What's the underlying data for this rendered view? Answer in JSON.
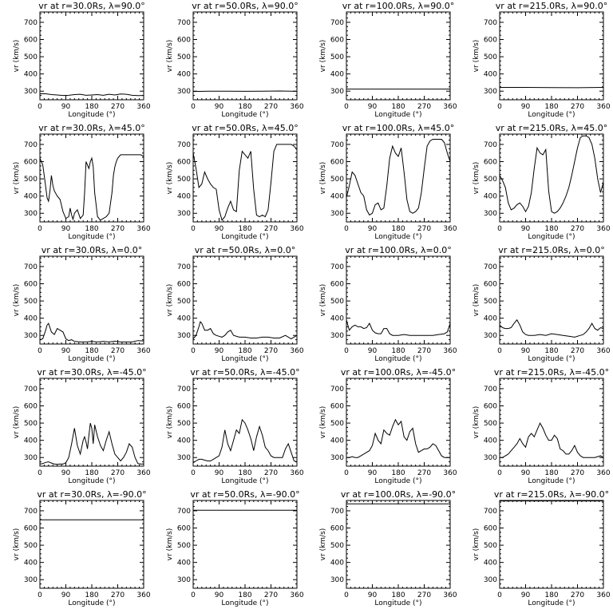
{
  "chart_data": {
    "type": "line",
    "layout": "5x4 grid of line plots",
    "xlabel": "Longitude (°)",
    "ylabel": "vr (km/s)",
    "xlim": [
      0,
      360
    ],
    "ylim": [
      250,
      760
    ],
    "xticks": [
      0,
      90,
      180,
      270,
      360
    ],
    "yticks": [
      300,
      400,
      500,
      600,
      700
    ],
    "color": "#000000",
    "panels": [
      {
        "title": "vr at r=30.0Rs, λ=90.0°",
        "x": [
          0,
          20,
          40,
          60,
          80,
          100,
          120,
          140,
          160,
          180,
          200,
          220,
          240,
          260,
          280,
          300,
          320,
          340,
          360
        ],
        "y": [
          285,
          285,
          280,
          278,
          275,
          276,
          280,
          282,
          276,
          278,
          280,
          276,
          282,
          278,
          284,
          282,
          276,
          274,
          275
        ]
      },
      {
        "title": "vr at r=50.0Rs, λ=90.0°",
        "x": [
          0,
          60,
          120,
          180,
          240,
          300,
          360
        ],
        "y": [
          298,
          300,
          300,
          299,
          300,
          301,
          299
        ]
      },
      {
        "title": "vr at r=100.0Rs, λ=90.0°",
        "x": [
          0,
          360
        ],
        "y": [
          312,
          312
        ]
      },
      {
        "title": "vr at r=215.0Rs, λ=90.0°",
        "x": [
          0,
          90,
          180,
          270,
          360
        ],
        "y": [
          322,
          322,
          321,
          320,
          322
        ]
      },
      {
        "title": "vr at r=30.0Rs, λ=45.0°",
        "x": [
          0,
          10,
          15,
          25,
          30,
          35,
          40,
          45,
          50,
          60,
          70,
          80,
          90,
          100,
          105,
          110,
          115,
          120,
          130,
          140,
          150,
          155,
          160,
          165,
          170,
          175,
          180,
          185,
          190,
          200,
          210,
          220,
          230,
          240,
          250,
          255,
          260,
          265,
          270,
          280,
          290,
          300,
          310,
          320,
          330,
          340,
          350,
          360
        ],
        "y": [
          620,
          580,
          520,
          390,
          370,
          430,
          520,
          460,
          430,
          400,
          380,
          310,
          270,
          280,
          330,
          290,
          265,
          300,
          320,
          270,
          290,
          420,
          600,
          580,
          560,
          600,
          620,
          570,
          420,
          280,
          260,
          270,
          280,
          300,
          420,
          520,
          570,
          600,
          620,
          640,
          640,
          640,
          640,
          640,
          640,
          640,
          640,
          630
        ]
      },
      {
        "title": "vr at r=50.0Rs, λ=45.0°",
        "x": [
          0,
          10,
          20,
          30,
          40,
          50,
          60,
          70,
          80,
          90,
          100,
          110,
          120,
          130,
          140,
          150,
          160,
          170,
          180,
          190,
          200,
          210,
          220,
          230,
          240,
          250,
          260,
          270,
          280,
          290,
          300,
          310,
          320,
          330,
          340,
          350,
          360
        ],
        "y": [
          650,
          560,
          450,
          470,
          540,
          500,
          470,
          450,
          440,
          320,
          260,
          280,
          330,
          370,
          320,
          310,
          550,
          660,
          640,
          620,
          660,
          440,
          290,
          280,
          290,
          280,
          320,
          480,
          660,
          700,
          700,
          700,
          700,
          700,
          700,
          690,
          670
        ]
      },
      {
        "title": "vr at r=100.0Rs, λ=45.0°",
        "x": [
          0,
          10,
          20,
          30,
          40,
          50,
          60,
          70,
          80,
          90,
          100,
          110,
          120,
          130,
          140,
          150,
          160,
          170,
          180,
          190,
          200,
          210,
          220,
          230,
          240,
          250,
          260,
          270,
          280,
          290,
          300,
          310,
          320,
          330,
          340,
          350,
          360
        ],
        "y": [
          390,
          460,
          540,
          520,
          470,
          420,
          400,
          320,
          290,
          300,
          350,
          360,
          320,
          330,
          460,
          620,
          690,
          650,
          630,
          680,
          540,
          380,
          310,
          300,
          310,
          330,
          420,
          560,
          690,
          720,
          730,
          730,
          730,
          730,
          710,
          650,
          600
        ]
      },
      {
        "title": "vr at r=215.0Rs, λ=45.0°",
        "x": [
          0,
          10,
          20,
          30,
          40,
          50,
          60,
          70,
          80,
          90,
          100,
          110,
          120,
          130,
          140,
          150,
          160,
          170,
          180,
          190,
          200,
          210,
          220,
          230,
          240,
          250,
          260,
          270,
          280,
          290,
          300,
          310,
          320,
          330,
          340,
          350,
          360
        ],
        "y": [
          520,
          490,
          450,
          360,
          320,
          330,
          350,
          360,
          340,
          310,
          340,
          420,
          560,
          680,
          650,
          640,
          670,
          430,
          310,
          300,
          310,
          330,
          360,
          400,
          450,
          520,
          600,
          680,
          740,
          750,
          750,
          740,
          700,
          620,
          500,
          420,
          480
        ]
      },
      {
        "title": "vr at r=30.0Rs, λ=0.0°",
        "x": [
          0,
          10,
          20,
          25,
          30,
          40,
          50,
          60,
          70,
          80,
          90,
          100,
          110,
          120,
          140,
          160,
          180,
          200,
          220,
          240,
          260,
          280,
          300,
          320,
          340,
          360
        ],
        "y": [
          275,
          280,
          330,
          360,
          370,
          320,
          305,
          340,
          330,
          320,
          280,
          270,
          275,
          265,
          262,
          262,
          265,
          262,
          265,
          262,
          266,
          262,
          262,
          262,
          270,
          268
        ]
      },
      {
        "title": "vr at r=50.0Rs, λ=0.0°",
        "x": [
          0,
          10,
          20,
          25,
          30,
          40,
          50,
          60,
          70,
          80,
          90,
          100,
          110,
          120,
          130,
          140,
          160,
          180,
          200,
          220,
          240,
          260,
          280,
          300,
          320,
          340,
          360
        ],
        "y": [
          280,
          300,
          350,
          380,
          370,
          330,
          330,
          340,
          310,
          300,
          295,
          290,
          300,
          320,
          330,
          300,
          290,
          290,
          285,
          285,
          290,
          290,
          285,
          285,
          300,
          280,
          300
        ]
      },
      {
        "title": "vr at r=100.0Rs, λ=0.0°",
        "x": [
          0,
          10,
          20,
          30,
          40,
          50,
          60,
          70,
          80,
          90,
          100,
          110,
          120,
          130,
          140,
          150,
          160,
          180,
          200,
          220,
          240,
          260,
          280,
          300,
          320,
          340,
          350,
          360
        ],
        "y": [
          390,
          330,
          350,
          360,
          350,
          350,
          340,
          345,
          370,
          330,
          315,
          310,
          310,
          340,
          340,
          310,
          300,
          300,
          305,
          300,
          300,
          300,
          300,
          300,
          305,
          310,
          320,
          370
        ]
      },
      {
        "title": "vr at r=215.0Rs, λ=0.0°",
        "x": [
          0,
          10,
          20,
          30,
          40,
          50,
          60,
          70,
          80,
          90,
          100,
          120,
          140,
          160,
          180,
          200,
          220,
          240,
          260,
          280,
          290,
          300,
          310,
          320,
          330,
          340,
          350,
          360
        ],
        "y": [
          360,
          345,
          340,
          340,
          345,
          370,
          390,
          360,
          320,
          305,
          300,
          300,
          305,
          300,
          310,
          305,
          300,
          295,
          290,
          300,
          305,
          320,
          340,
          370,
          340,
          330,
          345,
          340
        ]
      },
      {
        "title": "vr at r=30.0Rs, λ=-45.0°",
        "x": [
          0,
          10,
          20,
          30,
          40,
          50,
          60,
          70,
          80,
          90,
          100,
          110,
          120,
          130,
          140,
          150,
          155,
          160,
          165,
          170,
          175,
          180,
          185,
          190,
          200,
          210,
          220,
          230,
          240,
          250,
          260,
          270,
          280,
          290,
          300,
          310,
          320,
          330,
          340,
          350,
          360
        ],
        "y": [
          262,
          265,
          272,
          275,
          268,
          262,
          260,
          262,
          262,
          270,
          300,
          380,
          470,
          370,
          320,
          400,
          420,
          390,
          350,
          430,
          500,
          470,
          380,
          490,
          420,
          370,
          340,
          400,
          450,
          380,
          320,
          300,
          280,
          300,
          330,
          380,
          360,
          300,
          265,
          262,
          262
        ]
      },
      {
        "title": "vr at r=50.0Rs, λ=-45.0°",
        "x": [
          0,
          10,
          20,
          30,
          40,
          50,
          60,
          70,
          80,
          90,
          100,
          110,
          120,
          130,
          140,
          150,
          160,
          170,
          180,
          190,
          200,
          210,
          220,
          230,
          240,
          250,
          260,
          270,
          280,
          290,
          300,
          310,
          320,
          330,
          340,
          350,
          360
        ],
        "y": [
          270,
          280,
          290,
          290,
          285,
          280,
          280,
          290,
          300,
          310,
          360,
          460,
          380,
          340,
          400,
          460,
          440,
          520,
          500,
          460,
          410,
          340,
          420,
          480,
          430,
          360,
          340,
          310,
          300,
          300,
          300,
          300,
          350,
          380,
          330,
          280,
          275
        ]
      },
      {
        "title": "vr at r=100.0Rs, λ=-45.0°",
        "x": [
          0,
          10,
          20,
          30,
          40,
          50,
          60,
          70,
          80,
          90,
          100,
          110,
          120,
          130,
          140,
          150,
          160,
          170,
          180,
          190,
          200,
          210,
          220,
          230,
          240,
          250,
          260,
          270,
          280,
          290,
          300,
          310,
          320,
          330,
          340,
          350,
          360
        ],
        "y": [
          300,
          300,
          305,
          300,
          300,
          310,
          320,
          330,
          340,
          370,
          440,
          400,
          380,
          460,
          440,
          430,
          480,
          520,
          490,
          510,
          420,
          400,
          450,
          470,
          380,
          330,
          340,
          350,
          350,
          360,
          380,
          370,
          340,
          310,
          300,
          300,
          300
        ]
      },
      {
        "title": "vr at r=215.0Rs, λ=-45.0°",
        "x": [
          0,
          10,
          20,
          30,
          40,
          50,
          60,
          70,
          80,
          90,
          100,
          110,
          120,
          130,
          140,
          150,
          160,
          170,
          180,
          190,
          200,
          210,
          220,
          230,
          240,
          250,
          260,
          270,
          280,
          290,
          300,
          310,
          320,
          330,
          340,
          350,
          360
        ],
        "y": [
          300,
          300,
          310,
          320,
          340,
          360,
          380,
          410,
          380,
          360,
          420,
          440,
          420,
          460,
          500,
          470,
          430,
          400,
          400,
          430,
          410,
          350,
          340,
          320,
          320,
          340,
          370,
          330,
          310,
          300,
          300,
          300,
          300,
          300,
          305,
          310,
          300
        ]
      },
      {
        "title": "vr at r=30.0Rs, λ=-90.0°",
        "x": [
          0,
          360
        ],
        "y": [
          648,
          648
        ]
      },
      {
        "title": "vr at r=50.0Rs, λ=-90.0°",
        "x": [
          0,
          360
        ],
        "y": [
          703,
          703
        ]
      },
      {
        "title": "vr at r=100.0Rs, λ=-90.0°",
        "x": [
          0,
          360
        ],
        "y": [
          740,
          740
        ]
      },
      {
        "title": "vr at r=215.0Rs, λ=-90.0°",
        "x": [
          0,
          360
        ],
        "y": [
          757,
          757
        ]
      }
    ]
  }
}
